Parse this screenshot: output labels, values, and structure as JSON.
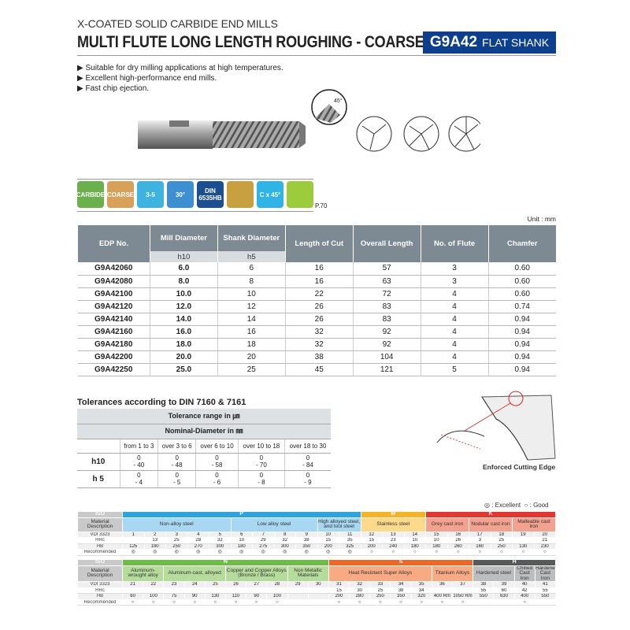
{
  "header": {
    "subtitle": "X-COATED SOLID CARBIDE END MILLS",
    "title": "MULTI FLUTE LONG LENGTH ROUGHING - COARSE",
    "code": "G9A42",
    "shank": "FLAT SHANK"
  },
  "bullets": [
    "Suitable for dry milling applications at high temperatures.",
    "Excellent high-performance end mills.",
    "Fast chip ejection."
  ],
  "drawing": {
    "angle_label": "45°"
  },
  "icons": [
    {
      "name": "carbide-icon",
      "label": "CARBIDE",
      "color": "#6ab04c"
    },
    {
      "name": "coarse-icon",
      "label": "COARSE",
      "color": "#d8a15a"
    },
    {
      "name": "flutes-icon",
      "label": "3-5",
      "color": "#3fb3df"
    },
    {
      "name": "helix-icon",
      "label": "30°",
      "color": "#3d8fd1"
    },
    {
      "name": "din-icon",
      "label": "DIN 6535HB",
      "color": "#1c4f8f"
    },
    {
      "name": "tolerance-icon",
      "label": "",
      "color": "#c9a040"
    },
    {
      "name": "chamfer-icon",
      "label": "C x 45°",
      "color": "#2fb4e6"
    },
    {
      "name": "square-end-icon",
      "label": "",
      "color": "#9ccc3c"
    }
  ],
  "page_ref": "P.70",
  "unit": "Unit : mm",
  "table": {
    "headers": [
      "EDP No.",
      "Mill Diameter",
      "Shank Diameter",
      "Length of Cut",
      "Overall Length",
      "No. of Flute",
      "Chamfer"
    ],
    "subheaders": [
      "h10",
      "h5"
    ],
    "rows": [
      [
        "G9A42060",
        "6.0",
        "6",
        "16",
        "57",
        "3",
        "0.60"
      ],
      [
        "G9A42080",
        "8.0",
        "8",
        "16",
        "63",
        "3",
        "0.60"
      ],
      [
        "G9A42100",
        "10.0",
        "10",
        "22",
        "72",
        "4",
        "0.60"
      ],
      [
        "G9A42120",
        "12.0",
        "12",
        "26",
        "83",
        "4",
        "0.74"
      ],
      [
        "G9A42140",
        "14.0",
        "14",
        "26",
        "83",
        "4",
        "0.94"
      ],
      [
        "G9A42160",
        "16.0",
        "16",
        "32",
        "92",
        "4",
        "0.94"
      ],
      [
        "G9A42180",
        "18.0",
        "18",
        "32",
        "92",
        "4",
        "0.94"
      ],
      [
        "G9A42200",
        "20.0",
        "20",
        "38",
        "104",
        "4",
        "0.94"
      ],
      [
        "G9A42250",
        "25.0",
        "25",
        "45",
        "121",
        "5",
        "0.94"
      ]
    ]
  },
  "tolerances": {
    "title": "Tolerances according to DIN 7160 & 7161",
    "range_label": "Tolerance range in ㎛",
    "nominal_label": "Nominal-Diameter in ㎜",
    "columns": [
      "from 1 to 3",
      "over 3 to 6",
      "over 6 to 10",
      "over 10 to 18",
      "over 18 to 30"
    ],
    "rows": [
      {
        "label": "h10",
        "upper": [
          "0",
          "0",
          "0",
          "0",
          "0"
        ],
        "lower": [
          "- 40",
          "- 48",
          "- 58",
          "- 70",
          "- 84"
        ]
      },
      {
        "label": "h 5",
        "upper": [
          "0",
          "0",
          "0",
          "0",
          "0"
        ],
        "lower": [
          "- 4",
          "- 5",
          "- 6",
          "- 8",
          "- 9"
        ]
      }
    ]
  },
  "edge_label": "Enforced Cutting Edge",
  "legend": {
    "excellent": "◎ : Excellent",
    "good": "○ : Good"
  },
  "materials": {
    "labels": [
      "ISO",
      "Material Description",
      "VDI 3323",
      "HRc",
      "HB",
      "Recommended"
    ],
    "sections": [
      {
        "groups": [
          {
            "iso": "P",
            "color": "#2aa5df",
            "light": "#a8d7f1",
            "desc": [
              [
                "Non-alloy steel",
                5
              ],
              [
                "Low alloy steel",
                4
              ],
              [
                "High alloyed steel, and tool steel",
                2
              ]
            ]
          },
          {
            "iso": "M",
            "color": "#f6b420",
            "light": "#fcd98b",
            "desc": [
              [
                "Stainless steel",
                3
              ]
            ]
          },
          {
            "iso": "K",
            "color": "#e8352b",
            "light": "#f3a28f",
            "desc": [
              [
                "Grey cast iron",
                2
              ],
              [
                "Nodular cast iron",
                2
              ],
              [
                "Malleable cast iron",
                2
              ]
            ]
          }
        ],
        "vdi": [
          "1",
          "2",
          "3",
          "4",
          "5",
          "6",
          "7",
          "8",
          "9",
          "10",
          "11",
          "12",
          "13",
          "14",
          "15",
          "16",
          "17",
          "18",
          "19",
          "20"
        ],
        "hrc": [
          "",
          "13",
          "25",
          "28",
          "32",
          "10",
          "29",
          "32",
          "38",
          "15",
          "35",
          "15",
          "23",
          "10",
          "10",
          "26",
          "3",
          "25",
          "",
          "21"
        ],
        "hb": [
          "125",
          "190",
          "250",
          "270",
          "300",
          "180",
          "275",
          "300",
          "350",
          "200",
          "325",
          "200",
          "240",
          "180",
          "180",
          "260",
          "160",
          "250",
          "130",
          "230"
        ],
        "rec": [
          "◎",
          "◎",
          "◎",
          "◎",
          "◎",
          "◎",
          "◎",
          "◎",
          "◎",
          "◎",
          "◎",
          "○",
          "○",
          "○",
          "○",
          "○",
          "○",
          "○",
          "○",
          "○"
        ]
      },
      {
        "groups": [
          {
            "iso": "N",
            "color": "#6cbd45",
            "light": "#b6dc9c",
            "desc": [
              [
                "Aluminum-wrought alloy",
                2
              ],
              [
                "Aluminum-cast, alloyed",
                3
              ],
              [
                "Copper and Copper Alloys (Bronze / Brass)",
                3
              ],
              [
                "Non Metallic Materials",
                2
              ]
            ]
          },
          {
            "iso": "S",
            "color": "#f26522",
            "light": "#f8aa83",
            "desc": [
              [
                "Heat Resistant Super Alloys",
                5
              ],
              [
                "Titanium Alloys",
                2
              ]
            ]
          },
          {
            "iso": "H",
            "color": "#58595b",
            "light": "#bcbdbf",
            "desc": [
              [
                "Hardened steel",
                2
              ],
              [
                "Chilled Cast Iron",
                1
              ],
              [
                "Hardened Cast Iron",
                1
              ]
            ]
          }
        ],
        "vdi": [
          "21",
          "22",
          "23",
          "24",
          "25",
          "26",
          "27",
          "28",
          "29",
          "30",
          "31",
          "32",
          "33",
          "34",
          "35",
          "36",
          "37",
          "38",
          "39",
          "40",
          "41"
        ],
        "hrc": [
          "",
          "",
          "",
          "",
          "",
          "",
          "",
          "",
          "",
          "",
          "15",
          "30",
          "25",
          "38",
          "34",
          "",
          "",
          "55",
          "60",
          "42",
          "55"
        ],
        "hb": [
          "60",
          "100",
          "75",
          "90",
          "130",
          "110",
          "90",
          "100",
          "",
          "",
          "200",
          "280",
          "250",
          "350",
          "320",
          "400 Rm",
          "1050 Rm",
          "550",
          "630",
          "400",
          "550"
        ],
        "rec": [
          "○",
          "○",
          "○",
          "○",
          "○",
          "○",
          "○",
          "○",
          "",
          "",
          "○",
          "○",
          "○",
          "○",
          "○",
          "○",
          "○",
          "",
          "",
          "○",
          ""
        ]
      }
    ]
  }
}
